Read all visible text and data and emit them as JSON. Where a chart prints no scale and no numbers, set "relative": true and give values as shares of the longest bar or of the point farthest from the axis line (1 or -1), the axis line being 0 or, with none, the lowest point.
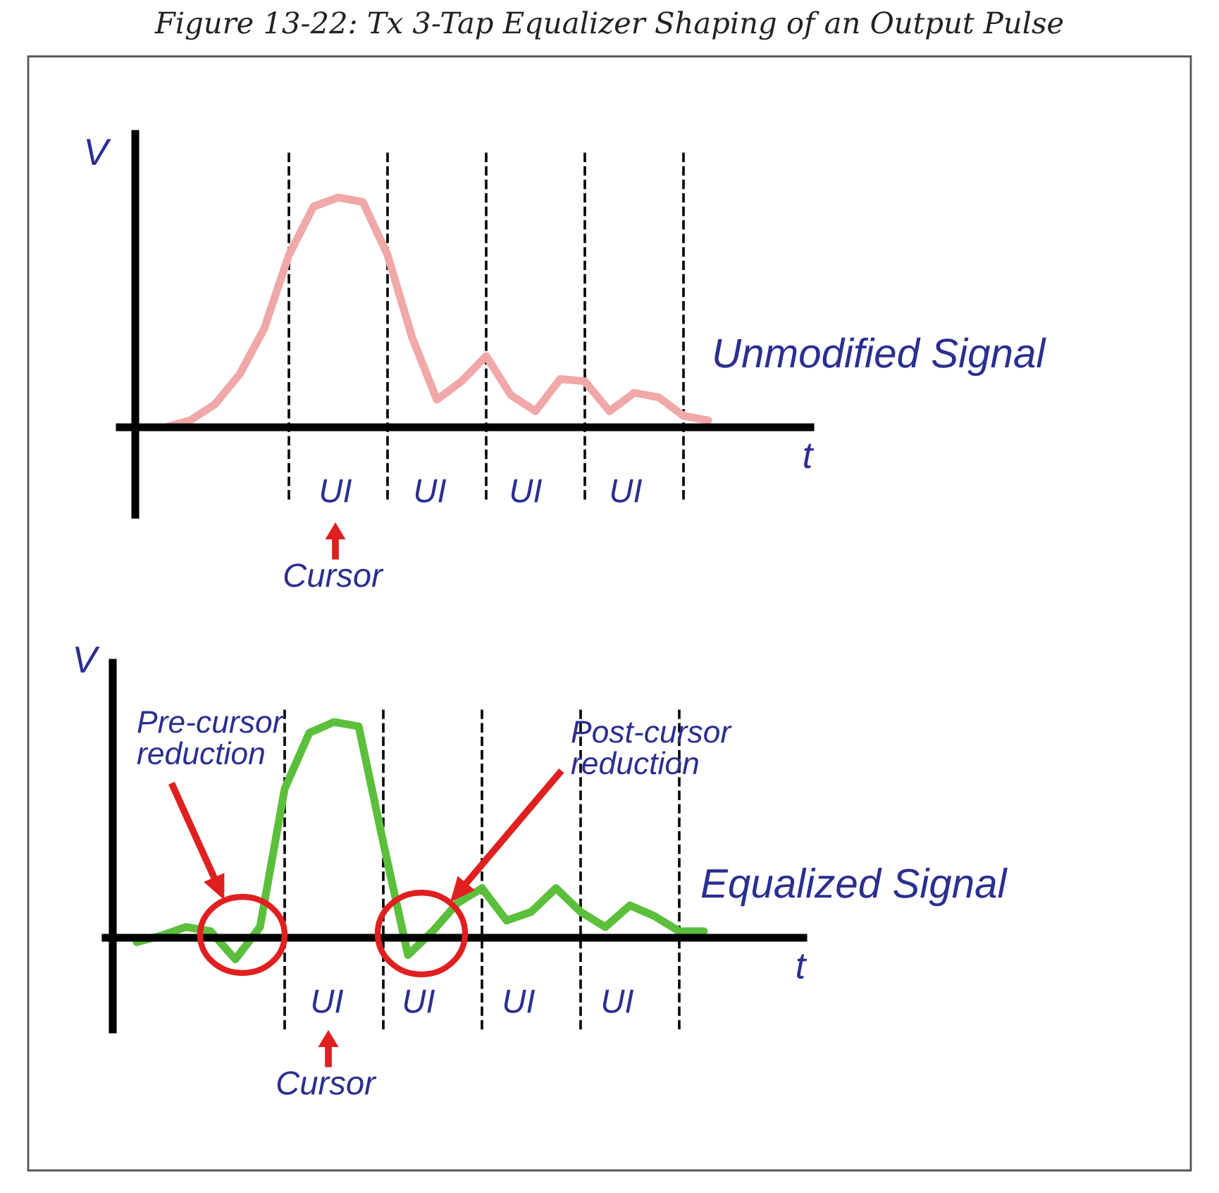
{
  "chart_data": [
    {
      "type": "line",
      "title": "Figure 13-22: Tx 3-Tap Equalizer Shaping of an Output Pulse",
      "xlabel": "t",
      "ylabel": "V",
      "relative": true,
      "categories": [
        null,
        null,
        null,
        null,
        null,
        null,
        null,
        null,
        null,
        null,
        null,
        null,
        null,
        null,
        null,
        null,
        null,
        null,
        null,
        null,
        null,
        null,
        null
      ],
      "series": [
        {
          "name": "Unmodified Signal",
          "color": "#f0a8a8",
          "values": [
            0,
            0.03,
            0.1,
            0.23,
            0.43,
            0.75,
            0.96,
            1,
            0.98,
            0.75,
            0.39,
            0.12,
            0.2,
            0.31,
            0.14,
            0.07,
            0.21,
            0.2,
            0.07,
            0.15,
            0.13,
            0.05,
            0.03
          ]
        }
      ],
      "annotations": [
        "UI",
        "UI",
        "UI",
        "UI",
        "Cursor"
      ],
      "legend": false,
      "grid": "x",
      "line_style": "solid",
      "marker": "none"
    },
    {
      "type": "line",
      "xlabel": "t",
      "ylabel": "V",
      "relative": true,
      "categories": [
        null,
        null,
        null,
        null,
        null,
        null,
        null,
        null,
        null,
        null,
        null,
        null,
        null,
        null,
        null,
        null,
        null,
        null,
        null,
        null,
        null,
        null,
        null,
        null
      ],
      "series": [
        {
          "name": "Equalized Signal",
          "color": "#5cbf3c",
          "values": [
            -0.02,
            0.01,
            0.05,
            0.03,
            -0.1,
            0.05,
            0.69,
            0.95,
            1,
            0.98,
            0.44,
            -0.08,
            0.03,
            0.16,
            0.23,
            0.08,
            0.12,
            0.23,
            0.12,
            0.05,
            0.15,
            0.1,
            0.03,
            0.03
          ]
        }
      ],
      "annotations": [
        "Pre-cursor\nreduction",
        "Post-cursor\nreduction",
        "UI",
        "UI",
        "UI",
        "UI",
        "Cursor"
      ],
      "legend": false,
      "grid": "x",
      "line_style": "solid",
      "marker": "none"
    }
  ]
}
